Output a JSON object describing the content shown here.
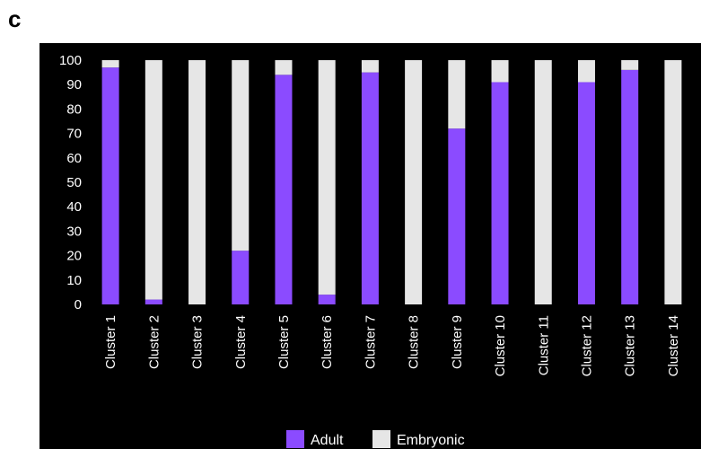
{
  "panel_label": "c",
  "colors": {
    "background": "#000000",
    "adult": "#8B4BFF",
    "embryonic": "#E6E6E6",
    "text": "#FFFFFF"
  },
  "chart_data": {
    "type": "bar",
    "stacked": true,
    "categories": [
      "Cluster 1",
      "Cluster 2",
      "Cluster 3",
      "Cluster 4",
      "Cluster 5",
      "Cluster 6",
      "Cluster 7",
      "Cluster 8",
      "Cluster 9",
      "Cluster 10",
      "Cluster 11",
      "Cluster 12",
      "Cluster 13",
      "Cluster 14"
    ],
    "series": [
      {
        "name": "Adult",
        "values": [
          97,
          2,
          0,
          22,
          94,
          4,
          95,
          0,
          72,
          91,
          0,
          91,
          96,
          0
        ]
      },
      {
        "name": "Embryonic",
        "values": [
          3,
          98,
          100,
          78,
          6,
          96,
          5,
          100,
          28,
          9,
          100,
          9,
          4,
          100
        ]
      }
    ],
    "title": "",
    "xlabel": "",
    "ylabel": "",
    "ylim": [
      0,
      100
    ],
    "yticks": [
      0,
      10,
      20,
      30,
      40,
      50,
      60,
      70,
      80,
      90,
      100
    ],
    "grid": false,
    "legend_position": "bottom"
  }
}
